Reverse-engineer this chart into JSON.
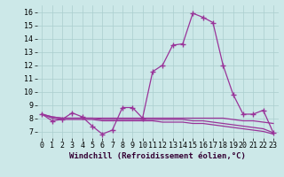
{
  "xlabel": "Windchill (Refroidissement éolien,°C)",
  "ylabel": "",
  "background_color": "#cce8e8",
  "grid_color": "#aacece",
  "line_color": "#993399",
  "x": [
    0,
    1,
    2,
    3,
    4,
    5,
    6,
    7,
    8,
    9,
    10,
    11,
    12,
    13,
    14,
    15,
    16,
    17,
    18,
    19,
    20,
    21,
    22,
    23
  ],
  "y_main": [
    8.3,
    7.8,
    7.9,
    8.4,
    8.1,
    7.4,
    6.8,
    7.1,
    8.8,
    8.8,
    8.0,
    11.5,
    12.0,
    13.5,
    13.6,
    15.9,
    15.6,
    15.2,
    12.0,
    9.8,
    8.3,
    8.3,
    8.6,
    6.9
  ],
  "y_flat1": [
    8.3,
    8.1,
    8.0,
    8.0,
    8.0,
    8.0,
    8.0,
    8.0,
    8.0,
    8.0,
    8.0,
    8.0,
    8.0,
    8.0,
    8.0,
    8.0,
    8.0,
    8.0,
    8.0,
    7.9,
    7.8,
    7.8,
    7.7,
    7.6
  ],
  "y_flat2": [
    8.3,
    8.1,
    8.0,
    8.0,
    8.0,
    8.0,
    7.9,
    7.9,
    7.9,
    7.9,
    7.9,
    7.9,
    7.9,
    7.9,
    7.9,
    7.8,
    7.8,
    7.7,
    7.6,
    7.5,
    7.4,
    7.3,
    7.2,
    6.9
  ],
  "y_flat3": [
    8.3,
    8.0,
    7.9,
    7.9,
    7.9,
    7.9,
    7.8,
    7.8,
    7.8,
    7.8,
    7.8,
    7.8,
    7.7,
    7.7,
    7.7,
    7.6,
    7.6,
    7.5,
    7.4,
    7.3,
    7.2,
    7.1,
    7.0,
    6.8
  ],
  "ylim": [
    6.5,
    16.5
  ],
  "yticks": [
    7,
    8,
    9,
    10,
    11,
    12,
    13,
    14,
    15,
    16
  ],
  "xticks": [
    0,
    1,
    2,
    3,
    4,
    5,
    6,
    7,
    8,
    9,
    10,
    11,
    12,
    13,
    14,
    15,
    16,
    17,
    18,
    19,
    20,
    21,
    22,
    23
  ],
  "xtick_labels": [
    "0",
    "1",
    "2",
    "3",
    "4",
    "5",
    "6",
    "7",
    "8",
    "9",
    "10",
    "11",
    "12",
    "13",
    "14",
    "15",
    "16",
    "17",
    "18",
    "19",
    "20",
    "21",
    "22",
    "23"
  ],
  "marker": "+",
  "markersize": 4,
  "linewidth": 0.9,
  "xlabel_fontsize": 6.5,
  "tick_fontsize": 6.0
}
